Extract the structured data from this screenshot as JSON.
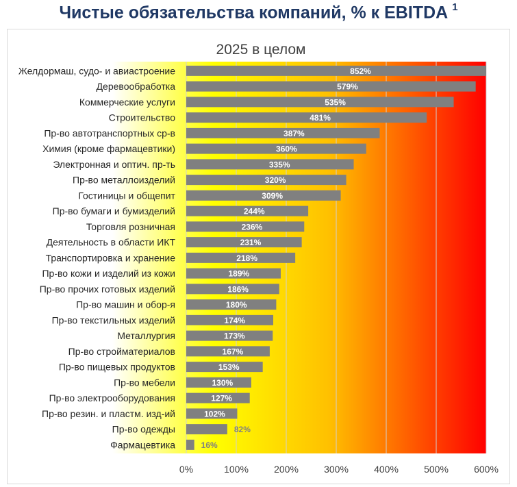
{
  "title": "Чистые обязательства компаний, % к EBITDA",
  "title_footnote": "1",
  "chart_data": {
    "type": "bar",
    "orientation": "horizontal",
    "title": "2025 в целом",
    "categories": [
      "Желдормаш, судо- и авиастроение",
      "Деревообработка",
      "Коммерческие услуги",
      "Строительство",
      "Пр-во автотранспортных ср-в",
      "Химия (кроме фармацевтики)",
      "Электронная и оптич. пр-ть",
      "Пр-во металлоизделий",
      "Гостиницы и общепит",
      "Пр-во бумаги и бумизделий",
      "Торговля розничная",
      "Деятельность в области ИКТ",
      "Транспортировка и хранение",
      "Пр-во кожи и изделий из кожи",
      "Пр-во прочих готовых изделий",
      "Пр-во машин и обор-я",
      "Пр-во текстильных изделий",
      "Металлургия",
      "Пр-во стройматериалов",
      "Пр-во пищевых продуктов",
      "Пр-во мебели",
      "Пр-во электрооборудования",
      "Пр-во резин. и пластм. изд-ий",
      "Пр-во одежды",
      "Фармацевтика"
    ],
    "values": [
      852,
      579,
      535,
      481,
      387,
      360,
      335,
      320,
      309,
      244,
      236,
      231,
      218,
      189,
      186,
      180,
      174,
      173,
      167,
      153,
      130,
      127,
      102,
      82,
      16
    ],
    "value_labels": [
      "852%",
      "579%",
      "535%",
      "481%",
      "387%",
      "360%",
      "335%",
      "320%",
      "309%",
      "244%",
      "236%",
      "231%",
      "218%",
      "189%",
      "186%",
      "180%",
      "174%",
      "173%",
      "167%",
      "153%",
      "130%",
      "127%",
      "102%",
      "82%",
      "16%"
    ],
    "xlim": [
      0,
      600
    ],
    "x_ticks": [
      "0%",
      "100%",
      "200%",
      "300%",
      "400%",
      "500%",
      "600%"
    ],
    "x_tick_values": [
      0,
      100,
      200,
      300,
      400,
      500,
      600
    ],
    "grid": true,
    "bar_color": "#808080",
    "label_color_inside": "#ffffff",
    "label_color_outside": "#808080",
    "background_gradient": [
      "#ffffff",
      "#ffff00",
      "#ffc000",
      "#ff0000"
    ]
  }
}
